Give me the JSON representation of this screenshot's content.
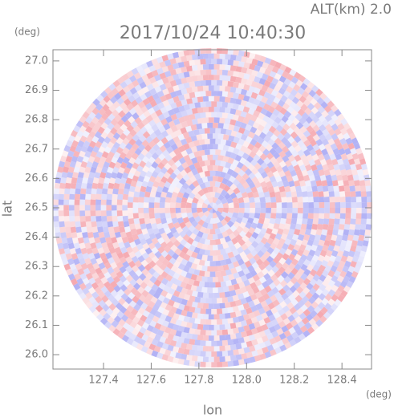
{
  "chart_data": {
    "type": "radar-ppi",
    "title": "2017/10/24 10:40:30",
    "subtitle": "ALT(km) 2.0",
    "xlabel": "lon",
    "ylabel": "lat",
    "x_unit": "(deg)",
    "y_unit": "(deg)",
    "xlim": [
      127.188,
      128.524
    ],
    "ylim": [
      25.951,
      27.038
    ],
    "xticks": [
      127.4,
      127.6,
      127.8,
      {
        "value": 128.0,
        "label": "128.0"
      },
      128.2,
      128.4
    ],
    "yticks": [
      {
        "value": 26.0,
        "label": "26.0"
      },
      26.1,
      26.2,
      26.3,
      26.4,
      26.5,
      26.6,
      26.7,
      26.8,
      26.9,
      {
        "value": 27.0,
        "label": "27.0"
      }
    ],
    "colors": [
      "#f4a0a8",
      "#a8a8f4"
    ]
  }
}
